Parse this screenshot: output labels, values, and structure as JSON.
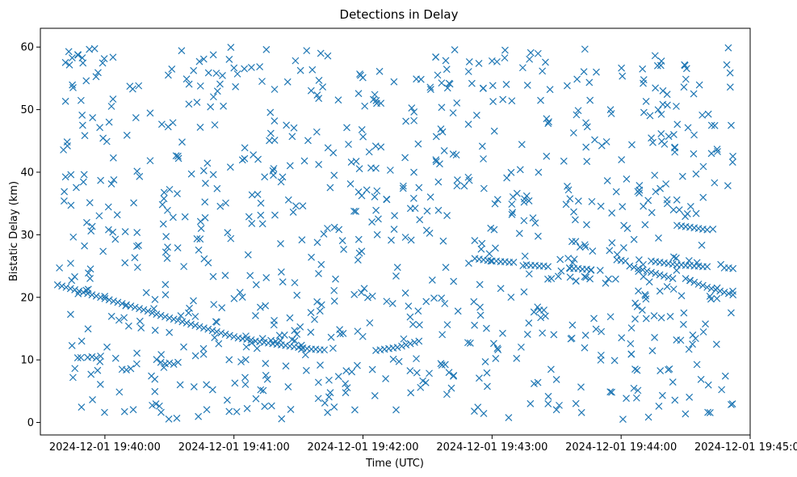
{
  "chart_data": {
    "type": "scatter",
    "title": "Detections in Delay",
    "xlabel": "Time (UTC)",
    "ylabel": "Bistatic Delay (km)",
    "marker": "x",
    "color": "#1f77b4",
    "xlim_seconds": [
      -30,
      300
    ],
    "x_origin": "2024-12-01 19:40:00",
    "ylim": [
      -2,
      63
    ],
    "x_ticks": [
      {
        "t": 0,
        "label": "2024-12-01 19:40:00"
      },
      {
        "t": 60,
        "label": "2024-12-01 19:41:00"
      },
      {
        "t": 120,
        "label": "2024-12-01 19:42:00"
      },
      {
        "t": 180,
        "label": "2024-12-01 19:43:00"
      },
      {
        "t": 240,
        "label": "2024-12-01 19:44:00"
      },
      {
        "t": 300,
        "label": "2024-12-01 19:45:00"
      }
    ],
    "y_ticks": [
      {
        "v": 0,
        "label": "0"
      },
      {
        "v": 10,
        "label": "10"
      },
      {
        "v": 20,
        "label": "20"
      },
      {
        "v": 30,
        "label": "30"
      },
      {
        "v": 40,
        "label": "40"
      },
      {
        "v": 50,
        "label": "50"
      },
      {
        "v": 60,
        "label": "60"
      }
    ],
    "track_points": [
      {
        "t": -22,
        "y": 22.0
      },
      {
        "t": -20,
        "y": 21.8
      },
      {
        "t": -18,
        "y": 21.6
      },
      {
        "t": -16,
        "y": 21.4
      },
      {
        "t": -14,
        "y": 21.2
      },
      {
        "t": -12,
        "y": 21.0
      },
      {
        "t": -10,
        "y": 20.8
      },
      {
        "t": -8,
        "y": 20.6
      },
      {
        "t": -6,
        "y": 20.4
      },
      {
        "t": -4,
        "y": 20.2
      },
      {
        "t": -2,
        "y": 20.0
      },
      {
        "t": 0,
        "y": 19.8
      },
      {
        "t": 2,
        "y": 19.6
      },
      {
        "t": 4,
        "y": 19.4
      },
      {
        "t": 6,
        "y": 19.2
      },
      {
        "t": 8,
        "y": 19.0
      },
      {
        "t": 10,
        "y": 18.8
      },
      {
        "t": 12,
        "y": 18.6
      },
      {
        "t": 14,
        "y": 18.4
      },
      {
        "t": 16,
        "y": 18.2
      },
      {
        "t": 18,
        "y": 18.0
      },
      {
        "t": 20,
        "y": 17.8
      },
      {
        "t": 22,
        "y": 17.5
      },
      {
        "t": 24,
        "y": 17.3
      },
      {
        "t": 26,
        "y": 17.1
      },
      {
        "t": 28,
        "y": 16.9
      },
      {
        "t": 30,
        "y": 16.7
      },
      {
        "t": 32,
        "y": 16.5
      },
      {
        "t": 34,
        "y": 16.3
      },
      {
        "t": 36,
        "y": 16.1
      },
      {
        "t": 38,
        "y": 15.9
      },
      {
        "t": 40,
        "y": 15.7
      },
      {
        "t": 42,
        "y": 15.5
      },
      {
        "t": 44,
        "y": 15.3
      },
      {
        "t": 46,
        "y": 15.1
      },
      {
        "t": 48,
        "y": 14.9
      },
      {
        "t": 50,
        "y": 14.7
      },
      {
        "t": 52,
        "y": 14.5
      },
      {
        "t": 54,
        "y": 14.3
      },
      {
        "t": 56,
        "y": 14.1
      },
      {
        "t": 58,
        "y": 13.9
      },
      {
        "t": 60,
        "y": 13.7
      },
      {
        "t": 62,
        "y": 13.5
      },
      {
        "t": 64,
        "y": 13.4
      },
      {
        "t": 66,
        "y": 13.3
      },
      {
        "t": 68,
        "y": 13.2
      },
      {
        "t": 70,
        "y": 13.0
      },
      {
        "t": 72,
        "y": 12.9
      },
      {
        "t": 74,
        "y": 12.8
      },
      {
        "t": 76,
        "y": 12.7
      },
      {
        "t": 78,
        "y": 12.6
      },
      {
        "t": 80,
        "y": 12.5
      },
      {
        "t": 82,
        "y": 12.4
      },
      {
        "t": 84,
        "y": 12.3
      },
      {
        "t": 86,
        "y": 12.2
      },
      {
        "t": 88,
        "y": 12.1
      },
      {
        "t": 90,
        "y": 12.0
      },
      {
        "t": 92,
        "y": 11.9
      },
      {
        "t": 94,
        "y": 11.8
      },
      {
        "t": 96,
        "y": 11.7
      },
      {
        "t": 98,
        "y": 11.7
      },
      {
        "t": 100,
        "y": 11.6
      },
      {
        "t": 102,
        "y": 11.6
      },
      {
        "t": 126,
        "y": 11.5
      },
      {
        "t": 128,
        "y": 11.6
      },
      {
        "t": 130,
        "y": 11.7
      },
      {
        "t": 132,
        "y": 11.8
      },
      {
        "t": 134,
        "y": 11.9
      },
      {
        "t": 136,
        "y": 12.0
      },
      {
        "t": 138,
        "y": 12.2
      },
      {
        "t": 140,
        "y": 12.4
      },
      {
        "t": 142,
        "y": 12.6
      },
      {
        "t": 144,
        "y": 12.8
      },
      {
        "t": 146,
        "y": 13.0
      },
      {
        "t": 172,
        "y": 26.2
      },
      {
        "t": 174,
        "y": 26.1
      },
      {
        "t": 176,
        "y": 26.0
      },
      {
        "t": 178,
        "y": 25.9
      },
      {
        "t": 180,
        "y": 25.8
      },
      {
        "t": 182,
        "y": 25.8
      },
      {
        "t": 184,
        "y": 25.7
      },
      {
        "t": 186,
        "y": 25.7
      },
      {
        "t": 188,
        "y": 25.6
      },
      {
        "t": 190,
        "y": 25.6
      },
      {
        "t": 196,
        "y": 25.2
      },
      {
        "t": 198,
        "y": 25.1
      },
      {
        "t": 200,
        "y": 25.1
      },
      {
        "t": 202,
        "y": 25.0
      },
      {
        "t": 204,
        "y": 25.0
      },
      {
        "t": 206,
        "y": 24.9
      },
      {
        "t": 216,
        "y": 24.7
      },
      {
        "t": 218,
        "y": 24.6
      },
      {
        "t": 220,
        "y": 24.6
      },
      {
        "t": 222,
        "y": 24.5
      },
      {
        "t": 224,
        "y": 24.5
      },
      {
        "t": 226,
        "y": 24.4
      },
      {
        "t": 238,
        "y": 26.0
      },
      {
        "t": 240,
        "y": 25.9
      },
      {
        "t": 242,
        "y": 25.8
      },
      {
        "t": 244,
        "y": 25.0
      },
      {
        "t": 246,
        "y": 24.8
      },
      {
        "t": 248,
        "y": 24.6
      },
      {
        "t": 250,
        "y": 24.4
      },
      {
        "t": 252,
        "y": 24.2
      },
      {
        "t": 254,
        "y": 24.0
      },
      {
        "t": 256,
        "y": 23.8
      },
      {
        "t": 258,
        "y": 23.6
      },
      {
        "t": 260,
        "y": 23.4
      },
      {
        "t": 262,
        "y": 23.2
      },
      {
        "t": 264,
        "y": 23.0
      },
      {
        "t": 254,
        "y": 25.8
      },
      {
        "t": 256,
        "y": 25.7
      },
      {
        "t": 258,
        "y": 25.6
      },
      {
        "t": 260,
        "y": 25.5
      },
      {
        "t": 262,
        "y": 25.4
      },
      {
        "t": 264,
        "y": 25.3
      },
      {
        "t": 266,
        "y": 25.2
      },
      {
        "t": 268,
        "y": 25.2
      },
      {
        "t": 270,
        "y": 25.1
      },
      {
        "t": 272,
        "y": 25.1
      },
      {
        "t": 274,
        "y": 25.0
      },
      {
        "t": 276,
        "y": 25.0
      },
      {
        "t": 278,
        "y": 24.9
      },
      {
        "t": 280,
        "y": 24.9
      },
      {
        "t": 288,
        "y": 24.7
      },
      {
        "t": 290,
        "y": 24.7
      },
      {
        "t": 292,
        "y": 24.6
      },
      {
        "t": 266,
        "y": 31.5
      },
      {
        "t": 268,
        "y": 31.4
      },
      {
        "t": 270,
        "y": 31.3
      },
      {
        "t": 272,
        "y": 31.2
      },
      {
        "t": 274,
        "y": 31.1
      },
      {
        "t": 276,
        "y": 31.0
      },
      {
        "t": 278,
        "y": 30.9
      },
      {
        "t": 280,
        "y": 30.8
      },
      {
        "t": 270,
        "y": 23.0
      },
      {
        "t": 272,
        "y": 22.7
      },
      {
        "t": 274,
        "y": 22.4
      },
      {
        "t": 276,
        "y": 22.1
      },
      {
        "t": 278,
        "y": 21.9
      },
      {
        "t": 280,
        "y": 21.6
      },
      {
        "t": 282,
        "y": 21.4
      },
      {
        "t": 284,
        "y": 21.2
      },
      {
        "t": 286,
        "y": 21.0
      },
      {
        "t": 288,
        "y": 20.8
      },
      {
        "t": 290,
        "y": 20.6
      },
      {
        "t": 292,
        "y": 20.4
      },
      {
        "t": -8,
        "y": 10.4
      },
      {
        "t": -6,
        "y": 10.5
      },
      {
        "t": -4,
        "y": 10.3
      },
      {
        "t": -2,
        "y": 10.6
      },
      {
        "t": 26,
        "y": 9.6
      },
      {
        "t": 28,
        "y": 9.4
      },
      {
        "t": 30,
        "y": 9.5
      },
      {
        "t": 32,
        "y": 9.3
      },
      {
        "t": 34,
        "y": 9.6
      },
      {
        "t": 8,
        "y": 8.5
      },
      {
        "t": 10,
        "y": 8.4
      },
      {
        "t": 12,
        "y": 8.6
      }
    ],
    "noise_points": {
      "count": 900,
      "t_range": [
        -22,
        292
      ],
      "y_range": [
        0.5,
        60
      ]
    }
  }
}
